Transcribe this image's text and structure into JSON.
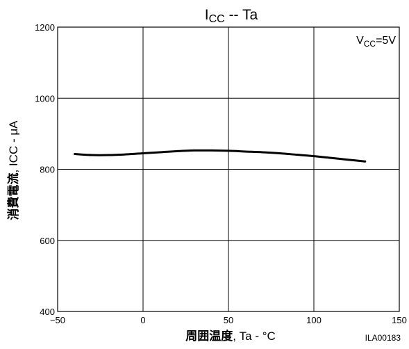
{
  "chart_data": {
    "type": "line",
    "title": {
      "main": "I",
      "sub": "CC",
      "rest": " -- Ta"
    },
    "xlabel": {
      "cjk": "周囲温度",
      "rest": ", Ta - °C"
    },
    "ylabel": {
      "cjk": "消費電流",
      "rest": ", ICC - μA"
    },
    "annotation": {
      "main": "V",
      "sub": "CC",
      "rest": "=5V"
    },
    "code": "ILA00183",
    "xlim": [
      -50,
      150
    ],
    "ylim": [
      400,
      1200
    ],
    "x_ticks": [
      "−50",
      "0",
      "50",
      "100",
      "150"
    ],
    "x_tick_values": [
      -50,
      0,
      50,
      100,
      150
    ],
    "y_ticks": [
      "1200",
      "1000",
      "800",
      "600",
      "400"
    ],
    "y_tick_values": [
      1200,
      1000,
      800,
      600,
      400
    ],
    "grid": true,
    "series": [
      {
        "x": [
          -40,
          -30,
          -20,
          -10,
          0,
          10,
          20,
          30,
          40,
          50,
          60,
          70,
          80,
          90,
          100,
          110,
          120,
          130
        ],
        "y": [
          843,
          840,
          840,
          842,
          845,
          848,
          851,
          853,
          853,
          852,
          850,
          848,
          845,
          841,
          837,
          832,
          827,
          822
        ]
      }
    ]
  }
}
